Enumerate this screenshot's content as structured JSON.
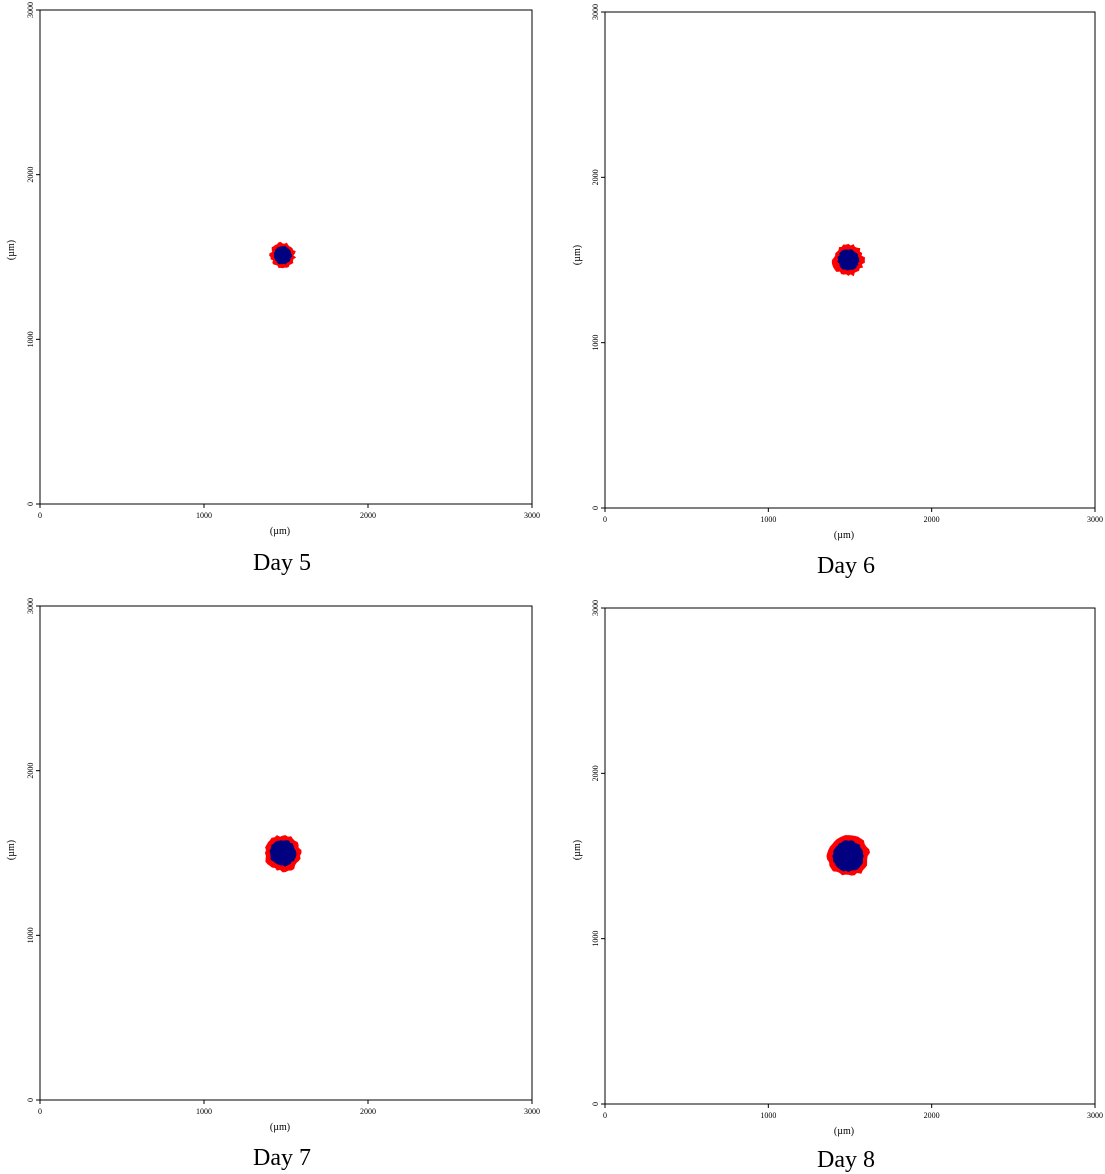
{
  "chart_data": [
    {
      "type": "scatter",
      "title": "Day 5",
      "xlabel": "(µm)",
      "ylabel": "(µm)",
      "xlim": [
        0,
        3000
      ],
      "ylim": [
        0,
        3000
      ],
      "xticks": [
        "0",
        "1000",
        "2000",
        "3000"
      ],
      "yticks": [
        "0",
        "1000",
        "2000",
        "3000"
      ],
      "grid": false,
      "series": [
        {
          "color": "#ff0000",
          "center": [
            1480,
            1510
          ],
          "radius": 75
        },
        {
          "color": "#000080",
          "center": [
            1480,
            1510
          ],
          "radius": 55
        }
      ]
    },
    {
      "type": "scatter",
      "title": "Day 6",
      "xlabel": "(µm)",
      "ylabel": "(µm)",
      "xlim": [
        0,
        3000
      ],
      "ylim": [
        0,
        3000
      ],
      "xticks": [
        "0",
        "1000",
        "2000",
        "3000"
      ],
      "yticks": [
        "0",
        "1000",
        "2000",
        "3000"
      ],
      "grid": false,
      "series": [
        {
          "color": "#ff0000",
          "center": [
            1490,
            1500
          ],
          "radius": 95
        },
        {
          "color": "#000080",
          "center": [
            1490,
            1500
          ],
          "radius": 65
        }
      ]
    },
    {
      "type": "scatter",
      "title": "Day 7",
      "xlabel": "(µm)",
      "ylabel": "(µm)",
      "xlim": [
        0,
        3000
      ],
      "ylim": [
        0,
        3000
      ],
      "xticks": [
        "0",
        "1000",
        "2000",
        "3000"
      ],
      "yticks": [
        "0",
        "1000",
        "2000",
        "3000"
      ],
      "grid": false,
      "series": [
        {
          "color": "#ff0000",
          "center": [
            1480,
            1500
          ],
          "radius": 110
        },
        {
          "color": "#000080",
          "center": [
            1480,
            1500
          ],
          "radius": 80
        }
      ]
    },
    {
      "type": "scatter",
      "title": "Day 8",
      "xlabel": "(µm)",
      "ylabel": "(µm)",
      "xlim": [
        0,
        3000
      ],
      "ylim": [
        0,
        3000
      ],
      "xticks": [
        "0",
        "1000",
        "2000",
        "3000"
      ],
      "yticks": [
        "0",
        "1000",
        "2000",
        "3000"
      ],
      "grid": false,
      "series": [
        {
          "color": "#ff0000",
          "center": [
            1490,
            1500
          ],
          "radius": 125
        },
        {
          "color": "#000080",
          "center": [
            1490,
            1500
          ],
          "radius": 95
        }
      ]
    }
  ]
}
